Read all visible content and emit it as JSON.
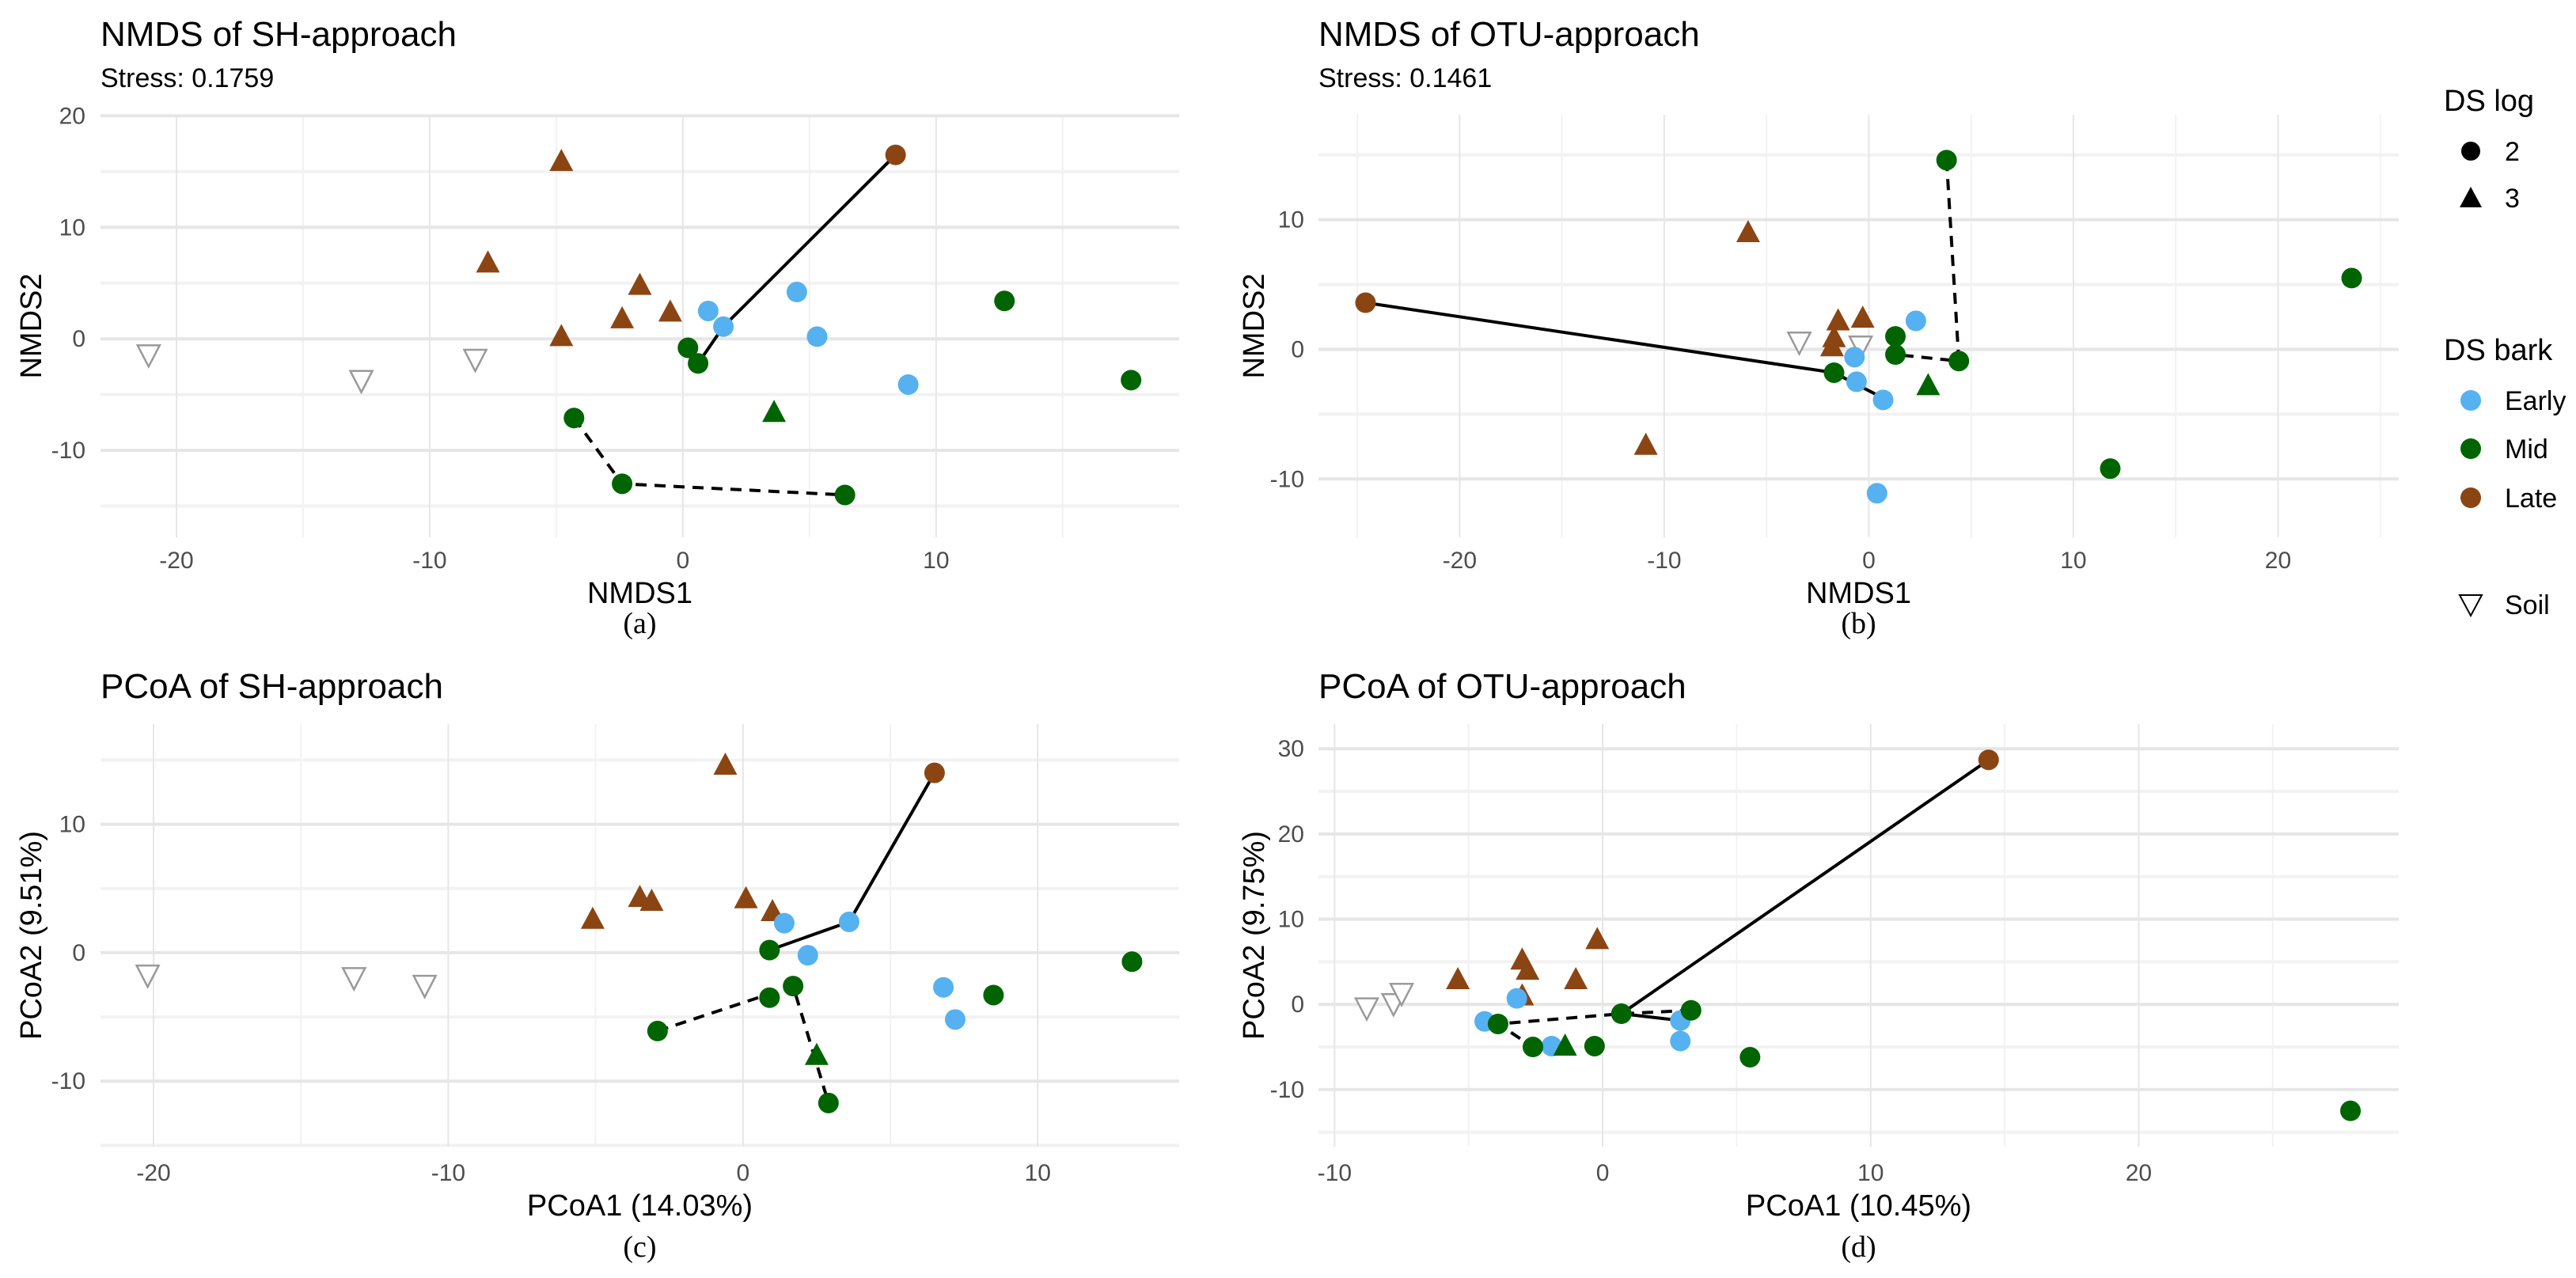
{
  "colors": {
    "Early": "#56B1F0",
    "Mid": "#006400",
    "Late": "#8B4513",
    "Soil": "#9a9a9a",
    "grid_major": "#e6e6e6",
    "grid_minor": "#f2f2f2"
  },
  "legend": {
    "log_title": "DS log",
    "log_items": [
      {
        "label": "2",
        "shape": "circle"
      },
      {
        "label": "3",
        "shape": "triangle"
      }
    ],
    "bark_title": "DS bark",
    "bark_items": [
      {
        "label": "Early"
      },
      {
        "label": "Mid"
      },
      {
        "label": "Late"
      }
    ],
    "soil_label": "Soil"
  },
  "chart_data": [
    {
      "type": "scatter",
      "title": "NMDS of SH-approach",
      "subtitle": "Stress: 0.1759",
      "xlabel": "NMDS1",
      "ylabel": "NMDS2",
      "caption": "(a)",
      "xlim": [
        -23.0,
        19.6
      ],
      "ylim": [
        -17.8,
        20.1
      ],
      "xticks": [
        -20,
        -10,
        0,
        10
      ],
      "yticks": [
        -10,
        0,
        10,
        20
      ],
      "grid": true,
      "points": [
        {
          "x": -21.1,
          "y": -1.5,
          "bark": "Soil"
        },
        {
          "x": -12.7,
          "y": -3.8,
          "bark": "Soil"
        },
        {
          "x": -8.2,
          "y": -1.9,
          "bark": "Soil"
        },
        {
          "x": -4.8,
          "y": 15.9,
          "bark": "Late",
          "log": "3"
        },
        {
          "x": -7.7,
          "y": 6.8,
          "bark": "Late",
          "log": "3"
        },
        {
          "x": -1.7,
          "y": 4.8,
          "bark": "Late",
          "log": "3"
        },
        {
          "x": -2.4,
          "y": 1.8,
          "bark": "Late",
          "log": "3"
        },
        {
          "x": -0.5,
          "y": 2.4,
          "bark": "Late",
          "log": "3"
        },
        {
          "x": -4.8,
          "y": 0.2,
          "bark": "Late",
          "log": "3"
        },
        {
          "x": 8.4,
          "y": 16.5,
          "bark": "Late",
          "log": "2"
        },
        {
          "x": 1.0,
          "y": 2.5,
          "bark": "Early",
          "log": "2"
        },
        {
          "x": 1.6,
          "y": 1.1,
          "bark": "Early",
          "log": "2"
        },
        {
          "x": 4.5,
          "y": 4.2,
          "bark": "Early",
          "log": "2"
        },
        {
          "x": 5.3,
          "y": 0.2,
          "bark": "Early",
          "log": "2"
        },
        {
          "x": 8.9,
          "y": -4.1,
          "bark": "Early",
          "log": "2"
        },
        {
          "x": 0.2,
          "y": -0.8,
          "bark": "Mid",
          "log": "2"
        },
        {
          "x": 0.6,
          "y": -2.2,
          "bark": "Mid",
          "log": "2"
        },
        {
          "x": 12.7,
          "y": 3.4,
          "bark": "Mid",
          "log": "2"
        },
        {
          "x": 17.7,
          "y": -3.7,
          "bark": "Mid",
          "log": "2"
        },
        {
          "x": -4.3,
          "y": -7.1,
          "bark": "Mid",
          "log": "2"
        },
        {
          "x": -2.4,
          "y": -13.0,
          "bark": "Mid",
          "log": "2"
        },
        {
          "x": 6.4,
          "y": -14.0,
          "bark": "Mid",
          "log": "2"
        },
        {
          "x": 3.6,
          "y": -6.6,
          "bark": "Mid",
          "log": "3"
        }
      ],
      "paths": [
        {
          "style": "solid",
          "points": [
            [
              0.6,
              -2.2
            ],
            [
              1.6,
              1.1
            ],
            [
              8.4,
              16.5
            ]
          ]
        },
        {
          "style": "dashed",
          "points": [
            [
              -4.3,
              -7.1
            ],
            [
              -2.4,
              -13.0
            ],
            [
              6.4,
              -14.0
            ]
          ]
        }
      ]
    },
    {
      "type": "scatter",
      "title": "NMDS of OTU-approach",
      "subtitle": "Stress: 0.1461",
      "xlabel": "NMDS1",
      "ylabel": "NMDS2",
      "caption": "(b)",
      "xlim": [
        -26.9,
        25.9
      ],
      "ylim": [
        -14.5,
        18.1
      ],
      "xticks": [
        -20,
        -10,
        0,
        10,
        20
      ],
      "yticks": [
        -10,
        0,
        10
      ],
      "grid": true,
      "points": [
        {
          "x": -3.4,
          "y": 0.5,
          "bark": "Soil"
        },
        {
          "x": -0.4,
          "y": 0.2,
          "bark": "Soil"
        },
        {
          "x": -24.6,
          "y": 3.6,
          "bark": "Late",
          "log": "2"
        },
        {
          "x": -5.9,
          "y": 9.0,
          "bark": "Late",
          "log": "3"
        },
        {
          "x": -10.9,
          "y": -7.4,
          "bark": "Late",
          "log": "3"
        },
        {
          "x": -1.5,
          "y": 2.2,
          "bark": "Late",
          "log": "3"
        },
        {
          "x": -0.3,
          "y": 2.4,
          "bark": "Late",
          "log": "3"
        },
        {
          "x": -1.7,
          "y": 0.9,
          "bark": "Late",
          "log": "3"
        },
        {
          "x": -1.8,
          "y": 0.2,
          "bark": "Late",
          "log": "3"
        },
        {
          "x": 2.3,
          "y": 2.2,
          "bark": "Early",
          "log": "2"
        },
        {
          "x": -0.7,
          "y": -0.6,
          "bark": "Early",
          "log": "2"
        },
        {
          "x": -0.6,
          "y": -2.5,
          "bark": "Early",
          "log": "2"
        },
        {
          "x": 0.7,
          "y": -3.9,
          "bark": "Early",
          "log": "2"
        },
        {
          "x": 0.4,
          "y": -11.1,
          "bark": "Early",
          "log": "2"
        },
        {
          "x": 3.8,
          "y": 14.6,
          "bark": "Mid",
          "log": "2"
        },
        {
          "x": 23.6,
          "y": 5.5,
          "bark": "Mid",
          "log": "2"
        },
        {
          "x": 1.3,
          "y": 1.0,
          "bark": "Mid",
          "log": "2"
        },
        {
          "x": 1.3,
          "y": -0.4,
          "bark": "Mid",
          "log": "2"
        },
        {
          "x": 4.4,
          "y": -0.9,
          "bark": "Mid",
          "log": "2"
        },
        {
          "x": -1.7,
          "y": -1.8,
          "bark": "Mid",
          "log": "2"
        },
        {
          "x": 11.8,
          "y": -9.2,
          "bark": "Mid",
          "log": "2"
        },
        {
          "x": 2.9,
          "y": -2.8,
          "bark": "Mid",
          "log": "3"
        }
      ],
      "paths": [
        {
          "style": "solid",
          "points": [
            [
              -24.6,
              3.6
            ],
            [
              -1.7,
              -1.8
            ],
            [
              0.5,
              -3.6
            ]
          ]
        },
        {
          "style": "dashed",
          "points": [
            [
              3.8,
              14.6
            ],
            [
              4.4,
              -0.9
            ],
            [
              1.3,
              -0.4
            ]
          ]
        }
      ]
    },
    {
      "type": "scatter",
      "title": "PCoA of SH-approach",
      "xlabel": "PCoA1 (14.03%)",
      "ylabel": "PCoA2 (9.51%)",
      "caption": "(c)",
      "xlim": [
        -21.8,
        14.8
      ],
      "ylim": [
        -15.1,
        17.8
      ],
      "xticks": [
        -20,
        -10,
        0,
        10
      ],
      "yticks": [
        -10,
        0,
        10
      ],
      "grid": true,
      "points": [
        {
          "x": -20.2,
          "y": -1.8,
          "bark": "Soil"
        },
        {
          "x": -13.2,
          "y": -2.0,
          "bark": "Soil"
        },
        {
          "x": -10.8,
          "y": -2.6,
          "bark": "Soil"
        },
        {
          "x": -0.6,
          "y": 14.6,
          "bark": "Late",
          "log": "3"
        },
        {
          "x": -5.1,
          "y": 2.6,
          "bark": "Late",
          "log": "3"
        },
        {
          "x": -3.5,
          "y": 4.3,
          "bark": "Late",
          "log": "3"
        },
        {
          "x": -3.1,
          "y": 4.0,
          "bark": "Late",
          "log": "3"
        },
        {
          "x": 0.1,
          "y": 4.2,
          "bark": "Late",
          "log": "3"
        },
        {
          "x": 1.0,
          "y": 3.2,
          "bark": "Late",
          "log": "3"
        },
        {
          "x": 6.5,
          "y": 14.0,
          "bark": "Late",
          "log": "2"
        },
        {
          "x": 1.4,
          "y": 2.3,
          "bark": "Early",
          "log": "2"
        },
        {
          "x": 3.6,
          "y": 2.4,
          "bark": "Early",
          "log": "2"
        },
        {
          "x": 2.2,
          "y": -0.2,
          "bark": "Early",
          "log": "2"
        },
        {
          "x": 6.8,
          "y": -2.7,
          "bark": "Early",
          "log": "2"
        },
        {
          "x": 7.2,
          "y": -5.2,
          "bark": "Early",
          "log": "2"
        },
        {
          "x": 0.9,
          "y": 0.2,
          "bark": "Mid",
          "log": "2"
        },
        {
          "x": 0.9,
          "y": -3.5,
          "bark": "Mid",
          "log": "2"
        },
        {
          "x": 1.7,
          "y": -2.6,
          "bark": "Mid",
          "log": "2"
        },
        {
          "x": -2.9,
          "y": -6.1,
          "bark": "Mid",
          "log": "2"
        },
        {
          "x": 2.9,
          "y": -11.7,
          "bark": "Mid",
          "log": "2"
        },
        {
          "x": 8.5,
          "y": -3.3,
          "bark": "Mid",
          "log": "2"
        },
        {
          "x": 13.2,
          "y": -0.7,
          "bark": "Mid",
          "log": "2"
        },
        {
          "x": 2.5,
          "y": -8.0,
          "bark": "Mid",
          "log": "3"
        }
      ],
      "paths": [
        {
          "style": "solid",
          "points": [
            [
              0.9,
              0.2
            ],
            [
              3.6,
              2.4
            ],
            [
              6.5,
              14.0
            ]
          ]
        },
        {
          "style": "dashed",
          "points": [
            [
              -2.9,
              -6.1
            ],
            [
              1.7,
              -2.6
            ],
            [
              2.9,
              -11.7
            ]
          ]
        }
      ]
    },
    {
      "type": "scatter",
      "title": "PCoA of OTU-approach",
      "xlabel": "PCoA1 (10.45%)",
      "ylabel": "PCoA2 (9.75%)",
      "caption": "(d)",
      "xlim": [
        -10.6,
        29.7
      ],
      "ylim": [
        -16.7,
        32.9
      ],
      "xticks": [
        -10,
        0,
        10,
        20
      ],
      "yticks": [
        -10,
        0,
        10,
        20,
        30
      ],
      "grid": true,
      "points": [
        {
          "x": -8.8,
          "y": -0.5,
          "bark": "Soil"
        },
        {
          "x": -7.8,
          "y": 0.0,
          "bark": "Soil"
        },
        {
          "x": -7.5,
          "y": 1.2,
          "bark": "Soil"
        },
        {
          "x": 14.4,
          "y": 28.7,
          "bark": "Late",
          "log": "2"
        },
        {
          "x": -5.4,
          "y": 2.9,
          "bark": "Late",
          "log": "3"
        },
        {
          "x": -3.0,
          "y": 5.2,
          "bark": "Late",
          "log": "3"
        },
        {
          "x": -2.8,
          "y": 4.0,
          "bark": "Late",
          "log": "3"
        },
        {
          "x": -1.0,
          "y": 2.9,
          "bark": "Late",
          "log": "3"
        },
        {
          "x": -0.2,
          "y": 7.6,
          "bark": "Late",
          "log": "3"
        },
        {
          "x": -3.0,
          "y": 1.0,
          "bark": "Late",
          "log": "3"
        },
        {
          "x": -3.2,
          "y": 0.7,
          "bark": "Early",
          "log": "2"
        },
        {
          "x": -4.4,
          "y": -2.0,
          "bark": "Early",
          "log": "2"
        },
        {
          "x": -1.9,
          "y": -4.9,
          "bark": "Early",
          "log": "2"
        },
        {
          "x": 2.9,
          "y": -1.9,
          "bark": "Early",
          "log": "2"
        },
        {
          "x": 2.9,
          "y": -4.3,
          "bark": "Early",
          "log": "2"
        },
        {
          "x": -3.9,
          "y": -2.3,
          "bark": "Mid",
          "log": "2"
        },
        {
          "x": -2.6,
          "y": -5.0,
          "bark": "Mid",
          "log": "2"
        },
        {
          "x": -0.3,
          "y": -4.9,
          "bark": "Mid",
          "log": "2"
        },
        {
          "x": 0.7,
          "y": -1.1,
          "bark": "Mid",
          "log": "2"
        },
        {
          "x": 3.3,
          "y": -0.7,
          "bark": "Mid",
          "log": "2"
        },
        {
          "x": 5.5,
          "y": -6.2,
          "bark": "Mid",
          "log": "2"
        },
        {
          "x": 27.9,
          "y": -12.5,
          "bark": "Mid",
          "log": "2"
        },
        {
          "x": -1.4,
          "y": -4.9,
          "bark": "Mid",
          "log": "3"
        }
      ],
      "paths": [
        {
          "style": "solid",
          "points": [
            [
              14.4,
              28.7
            ],
            [
              0.7,
              -1.1
            ],
            [
              2.9,
              -1.9
            ]
          ]
        },
        {
          "style": "dashed",
          "points": [
            [
              3.3,
              -0.7
            ],
            [
              0.7,
              -1.1
            ],
            [
              -3.9,
              -2.3
            ],
            [
              -2.6,
              -5.0
            ]
          ]
        }
      ]
    }
  ]
}
